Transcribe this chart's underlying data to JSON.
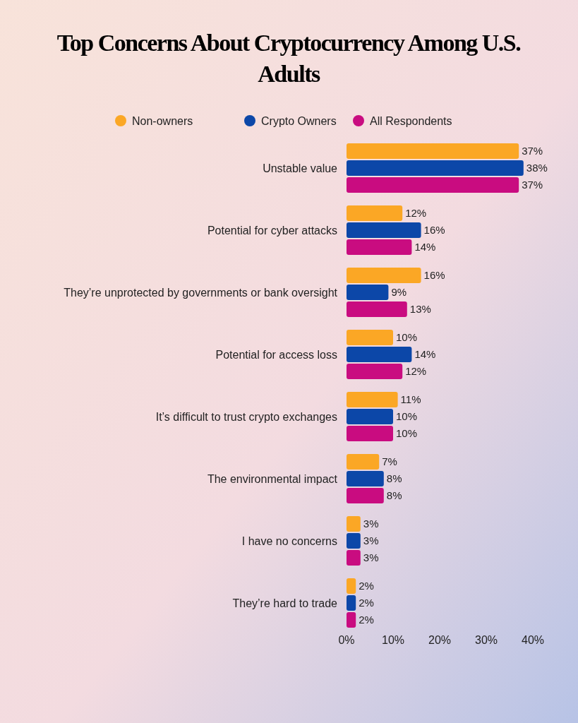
{
  "chart_data": {
    "type": "bar",
    "orientation": "horizontal",
    "title": "Top Concerns About Cryptocurrency Among U.S. Adults",
    "categories": [
      "Unstable value",
      "Potential for cyber attacks",
      "They’re unprotected by governments or bank oversight",
      "Potential for access loss",
      "It’s difficult to trust crypto exchanges",
      "The environmental impact",
      "I have no concerns",
      "They’re hard to trade"
    ],
    "series": [
      {
        "name": "Non-owners",
        "color": "#fba725",
        "values": [
          37,
          12,
          16,
          10,
          11,
          7,
          3,
          2
        ],
        "value_labels": [
          "37%",
          "12%",
          "16%",
          "10%",
          "11%",
          "7%",
          "3%",
          "2%"
        ]
      },
      {
        "name": "Crypto Owners",
        "color": "#0c47a8",
        "values": [
          38,
          16,
          9,
          14,
          10,
          8,
          3,
          2
        ],
        "value_labels": [
          "38%",
          "16%",
          "9%",
          "14%",
          "10%",
          "8%",
          "3%",
          "2%"
        ]
      },
      {
        "name": "All Respondents",
        "color": "#c90c80",
        "values": [
          37,
          14,
          13,
          12,
          10,
          8,
          3,
          2
        ],
        "value_labels": [
          "37%",
          "14%",
          "13%",
          "12%",
          "10%",
          "8%",
          "3%",
          "2%"
        ]
      }
    ],
    "xlim": [
      0,
      40
    ],
    "xticks": [
      {
        "value": 0,
        "label": "0%"
      },
      {
        "value": 10,
        "label": "10%"
      },
      {
        "value": 20,
        "label": "20%"
      },
      {
        "value": 30,
        "label": "30%"
      },
      {
        "value": 40,
        "label": "40%"
      }
    ],
    "legend": "top",
    "grid": false
  }
}
